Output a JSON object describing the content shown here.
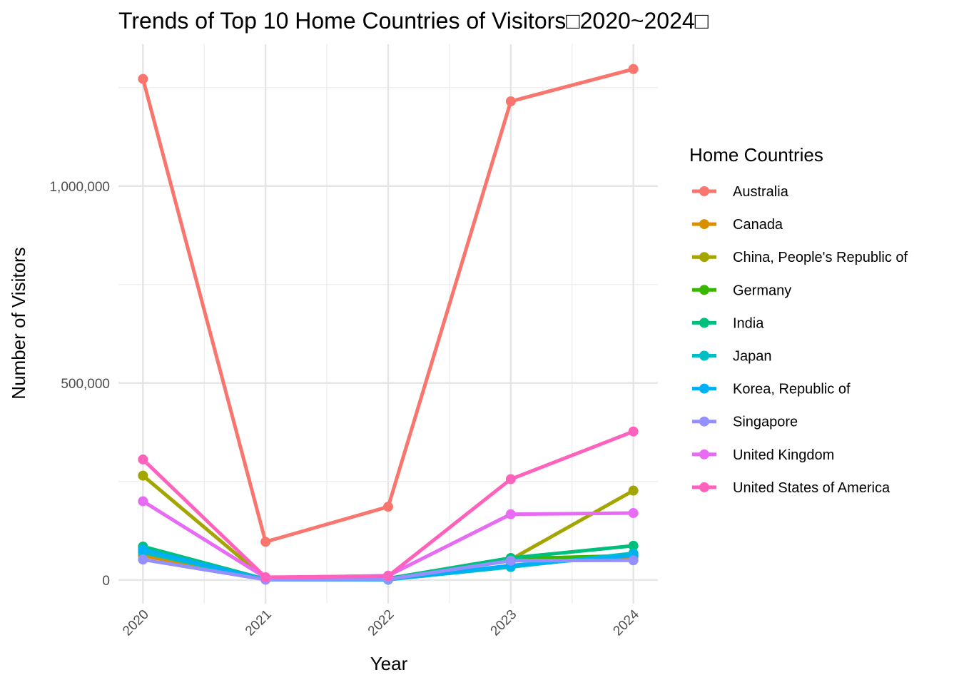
{
  "chart_data": {
    "type": "line",
    "title": "Trends of Top 10 Home Countries of Visitors□2020~2024□",
    "xlabel": "Year",
    "ylabel": "Number of Visitors",
    "x": [
      2020,
      2021,
      2022,
      2023,
      2024
    ],
    "x_tick_labels": [
      "2020",
      "2021",
      "2022",
      "2023",
      "2024"
    ],
    "y_ticks": [
      0,
      500000,
      1000000
    ],
    "y_tick_labels": [
      "0",
      "500,000",
      "1,000,000"
    ],
    "ylim": [
      -60000,
      1360000
    ],
    "grid": true,
    "legend_title": "Home Countries",
    "legend_position": "right",
    "series": [
      {
        "name": "Australia",
        "color": "#F8766D",
        "values": [
          1272000,
          97000,
          186000,
          1215000,
          1297000
        ]
      },
      {
        "name": "Canada",
        "color": "#D89000",
        "values": [
          62000,
          2000,
          3000,
          55000,
          58000
        ]
      },
      {
        "name": "China, People's Republic of",
        "color": "#A3A500",
        "values": [
          265000,
          3000,
          4000,
          52000,
          227000
        ]
      },
      {
        "name": "Germany",
        "color": "#39B600",
        "values": [
          80000,
          2000,
          4000,
          54000,
          62000
        ]
      },
      {
        "name": "India",
        "color": "#00BF7D",
        "values": [
          85000,
          2000,
          4000,
          56000,
          87000
        ]
      },
      {
        "name": "Japan",
        "color": "#00BFC4",
        "values": [
          70000,
          1000,
          1000,
          33000,
          68000
        ]
      },
      {
        "name": "Korea, Republic of",
        "color": "#00B0F6",
        "values": [
          77000,
          1000,
          1000,
          37000,
          62000
        ]
      },
      {
        "name": "Singapore",
        "color": "#9590FF",
        "values": [
          52000,
          1000,
          2000,
          49000,
          50000
        ]
      },
      {
        "name": "United Kingdom",
        "color": "#E76BF3",
        "values": [
          200000,
          6000,
          11000,
          167000,
          170000
        ]
      },
      {
        "name": "United States of America",
        "color": "#FF62BC",
        "values": [
          306000,
          7000,
          10000,
          256000,
          377000
        ]
      }
    ]
  }
}
